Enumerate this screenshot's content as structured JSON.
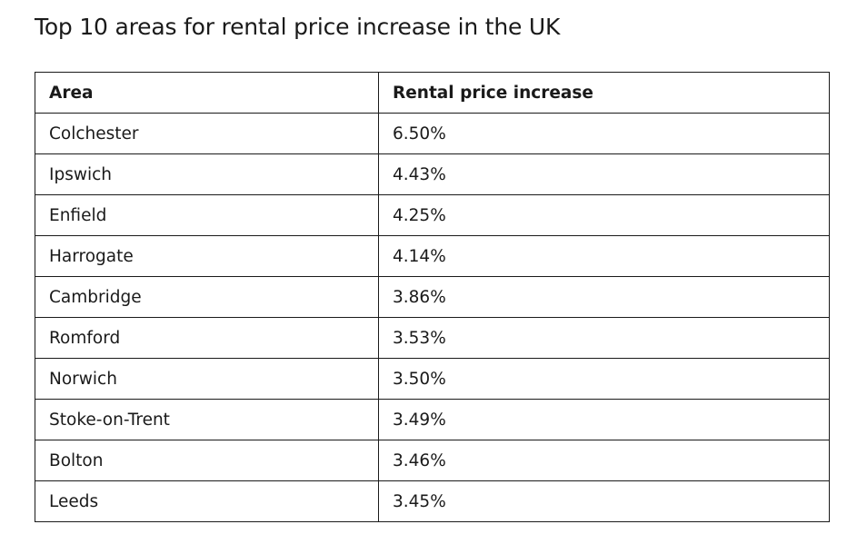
{
  "title": "Top 10 areas for rental price increase in the UK",
  "chart_data": {
    "type": "table",
    "title": "Top 10 areas for rental price increase in the UK",
    "columns": [
      "Area",
      "Rental price increase"
    ],
    "rows": [
      [
        "Colchester",
        "6.50%"
      ],
      [
        "Ipswich",
        "4.43%"
      ],
      [
        "Enfield",
        "4.25%"
      ],
      [
        "Harrogate",
        "4.14%"
      ],
      [
        "Cambridge",
        "3.86%"
      ],
      [
        "Romford",
        "3.53%"
      ],
      [
        "Norwich",
        "3.50%"
      ],
      [
        "Stoke-on-Trent",
        "3.49%"
      ],
      [
        "Bolton",
        "3.46%"
      ],
      [
        "Leeds",
        "3.45%"
      ]
    ]
  }
}
